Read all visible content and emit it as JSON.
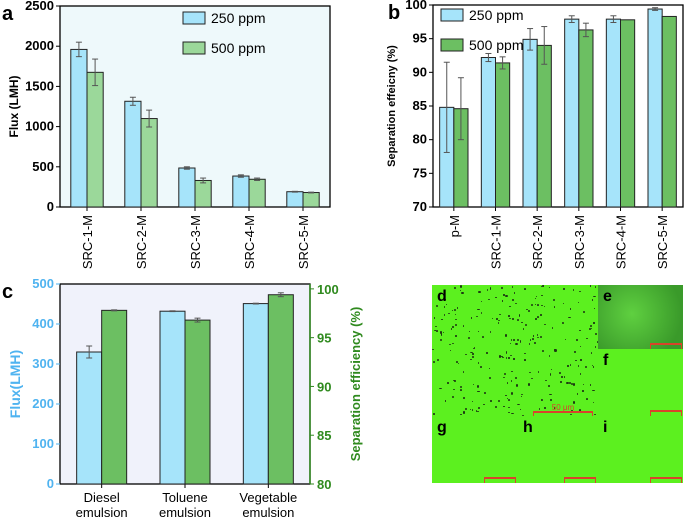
{
  "chart_data": [
    {
      "panel": "a",
      "type": "bar",
      "categories": [
        "SRC-1-M",
        "SRC-2-M",
        "SRC-3-M",
        "SRC-4-M",
        "SRC-5-M"
      ],
      "ylabel": "Flux (LMH)",
      "ylim": [
        0,
        2500
      ],
      "yticks": [
        0,
        500,
        1000,
        1500,
        2000,
        2500
      ],
      "legend": "top-right",
      "series": [
        {
          "name": "250 ppm",
          "color": "#a6e4fa",
          "values": [
            1960,
            1315,
            485,
            385,
            190
          ],
          "errors": [
            90,
            50,
            15,
            15,
            5
          ]
        },
        {
          "name": "500 ppm",
          "color": "#9bd89a",
          "values": [
            1675,
            1100,
            330,
            345,
            180
          ],
          "errors": [
            165,
            105,
            30,
            15,
            5
          ]
        }
      ]
    },
    {
      "panel": "b",
      "type": "bar",
      "categories": [
        "p-M",
        "SRC-1-M",
        "SRC-2-M",
        "SRC-3-M",
        "SRC-4-M",
        "SRC-5-M"
      ],
      "ylabel": "Separation effeicny (%)",
      "ylim": [
        70,
        100
      ],
      "yticks": [
        70,
        75,
        80,
        85,
        90,
        95,
        100
      ],
      "legend": "top-left",
      "series": [
        {
          "name": "250 ppm",
          "color": "#a6e4fa",
          "values": [
            84.8,
            92.2,
            94.9,
            97.9,
            97.9,
            99.4
          ],
          "errors": [
            6.7,
            0.6,
            1.6,
            0.5,
            0.5,
            0.2
          ]
        },
        {
          "name": "500 ppm",
          "color": "#6cbf62",
          "values": [
            84.6,
            91.4,
            94.0,
            96.3,
            97.8,
            98.3
          ],
          "errors": [
            4.6,
            0.9,
            2.8,
            1.0,
            0,
            0
          ]
        }
      ]
    },
    {
      "panel": "c",
      "type": "bar",
      "categories": [
        "Diesel emulsion",
        "Toluene emulsion",
        "Vegetable emulsion"
      ],
      "ylabel": "Flux(LMH)",
      "ylim": [
        0,
        500
      ],
      "yticks": [
        0,
        100,
        200,
        300,
        400,
        500
      ],
      "y2label": "Separation efficiency (%)",
      "y2lim": [
        80,
        100.5
      ],
      "y2ticks": [
        80,
        85,
        90,
        95,
        100
      ],
      "series": [
        {
          "name": "Flux",
          "axis": "left",
          "color": "#a6e4fa",
          "values": [
            330,
            432,
            451
          ],
          "errors": [
            15,
            1,
            1
          ]
        },
        {
          "name": "Separation efficiency",
          "axis": "right",
          "color": "#6cbf62",
          "values": [
            97.8,
            96.8,
            99.4
          ],
          "errors": [
            0.05,
            0.2,
            0.2
          ]
        }
      ]
    }
  ],
  "micrographs": {
    "labels": [
      "d",
      "e",
      "f",
      "g",
      "h",
      "i"
    ],
    "scale": "50 μm"
  },
  "colors": {
    "left_axis_c": "#4fb3f0",
    "right_axis_c": "#2f8a1e"
  }
}
